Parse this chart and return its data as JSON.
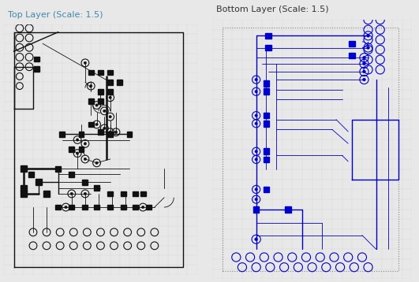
{
  "title_left": "Top Layer (Scale: 1.5)",
  "title_right": "Bottom Layer (Scale: 1.5)",
  "title_fontsize": 8,
  "title_color_left": "#4488aa",
  "title_color_right": "#333333",
  "bg_color": "#e8e8e8",
  "panel_bg": "#ffffff",
  "top_color": "#111111",
  "bottom_color": "#0000cc",
  "grid_color": "#cccccc"
}
